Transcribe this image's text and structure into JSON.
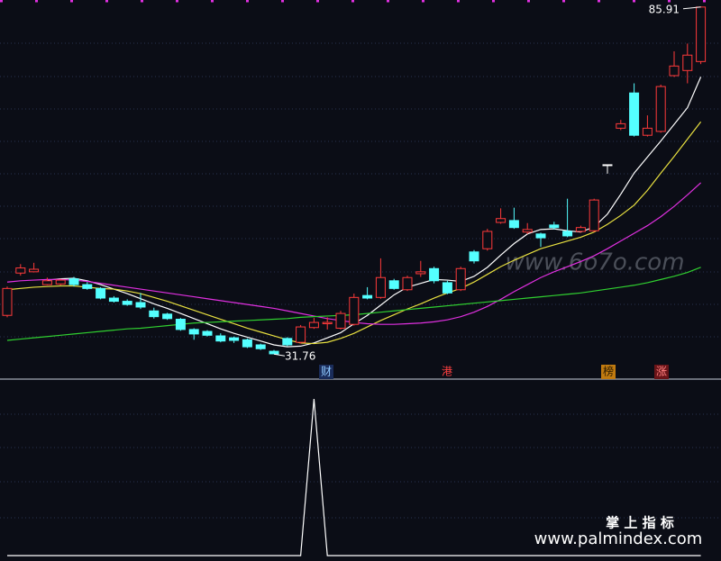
{
  "chart_data": [
    {
      "type": "candlestick",
      "ylim": [
        28,
        87
      ],
      "up_color": "#ff3a3a",
      "down_color": "#54ffff",
      "open": [
        37.8,
        44.4,
        44.6,
        42.6,
        42.7,
        43.5,
        42.6,
        42.0,
        40.5,
        40.0,
        39.8,
        38.5,
        38.0,
        37.2,
        35.6,
        35.3,
        34.6,
        34.3,
        34.0,
        33.2,
        32.2,
        34.2,
        33.6,
        35.9,
        36.5,
        35.8,
        36.4,
        40.9,
        40.6,
        43.2,
        41.8,
        44.3,
        45.1,
        42.9,
        41.8,
        47.7,
        48.2,
        52.3,
        52.6,
        50.8,
        50.5,
        51.9,
        50.9,
        50.9,
        51.0,
        61.3,
        67.0,
        72.5,
        65.9,
        66.5,
        75.2,
        76.0,
        77.4
      ],
      "close": [
        42.0,
        45.2,
        45.0,
        43.2,
        43.3,
        42.6,
        42.0,
        40.5,
        40.0,
        39.5,
        39.1,
        37.6,
        37.3,
        35.6,
        34.9,
        34.7,
        33.8,
        33.9,
        32.9,
        32.6,
        31.8,
        33.2,
        36.0,
        36.7,
        36.7,
        38.1,
        40.6,
        40.5,
        43.7,
        42.0,
        43.7,
        44.6,
        43.2,
        41.3,
        45.1,
        46.3,
        50.9,
        52.9,
        51.5,
        51.2,
        49.9,
        51.5,
        50.2,
        51.5,
        55.8,
        61.3,
        67.7,
        65.9,
        67.0,
        73.5,
        76.7,
        78.4,
        85.9
      ],
      "high": [
        42.3,
        45.8,
        46.0,
        43.7,
        43.5,
        43.8,
        43.0,
        42.2,
        40.8,
        40.3,
        41.3,
        39.0,
        38.2,
        37.4,
        35.8,
        35.5,
        35.0,
        34.5,
        34.2,
        33.4,
        32.4,
        34.4,
        36.3,
        37.4,
        37.5,
        38.5,
        41.2,
        42.2,
        46.7,
        43.5,
        44.0,
        46.3,
        45.4,
        43.2,
        45.4,
        48.0,
        51.3,
        54.5,
        54.6,
        52.2,
        50.7,
        52.4,
        56.0,
        51.8,
        56.0,
        61.3,
        68.3,
        74.0,
        69.0,
        73.8,
        79.0,
        80.2,
        85.91
      ],
      "low": [
        37.5,
        44.0,
        44.5,
        42.5,
        42.5,
        42.3,
        41.8,
        40.3,
        39.8,
        39.3,
        38.8,
        37.3,
        37.1,
        35.4,
        34.0,
        34.5,
        33.6,
        33.5,
        32.7,
        32.4,
        31.76,
        33.0,
        33.4,
        35.7,
        35.6,
        35.6,
        36.2,
        40.3,
        40.4,
        41.8,
        41.6,
        43.8,
        42.8,
        41.1,
        41.6,
        45.9,
        47.9,
        52.1,
        51.3,
        50.5,
        48.5,
        51.2,
        50.0,
        50.7,
        50.8,
        59.9,
        66.7,
        65.7,
        65.7,
        66.3,
        75.0,
        74.0,
        77.0
      ],
      "series": [
        {
          "color": "#ffffff",
          "values": [
            null,
            null,
            null,
            43.3,
            43.5,
            43.6,
            43.2,
            42.6,
            41.9,
            41.2,
            40.4,
            39.6,
            38.9,
            38.1,
            37.3,
            36.5,
            35.7,
            35.0,
            34.4,
            33.8,
            33.2,
            32.9,
            33.0,
            33.5,
            34.3,
            35.1,
            36.5,
            37.8,
            39.4,
            41.0,
            42.2,
            42.8,
            43.4,
            43.3,
            43.1,
            43.9,
            45.3,
            47.2,
            49.0,
            50.5,
            51.2,
            51.3,
            51.0,
            50.8,
            51.6,
            53.6,
            56.7,
            60.0,
            62.5,
            65.0,
            67.6,
            70.2,
            75.0
          ]
        },
        {
          "color": "#e8e040",
          "values": [
            41.8,
            42.0,
            42.2,
            42.3,
            42.4,
            42.4,
            42.2,
            42.0,
            41.9,
            41.6,
            41.2,
            40.6,
            40.0,
            39.3,
            38.6,
            37.9,
            37.2,
            36.5,
            35.8,
            35.2,
            34.6,
            34.0,
            33.5,
            33.4,
            33.6,
            34.2,
            35.0,
            36.0,
            37.0,
            37.9,
            38.8,
            39.6,
            40.5,
            41.3,
            42.0,
            43.0,
            44.2,
            45.4,
            46.4,
            47.3,
            48.2,
            48.8,
            49.4,
            50.0,
            50.8,
            52.0,
            53.4,
            55.0,
            57.3,
            60.0,
            62.6,
            65.3,
            68.0
          ]
        },
        {
          "color": "#e030e0",
          "values": [
            43.0,
            43.2,
            43.3,
            43.4,
            43.4,
            43.3,
            43.1,
            42.8,
            42.5,
            42.2,
            41.9,
            41.6,
            41.3,
            41.0,
            40.7,
            40.4,
            40.1,
            39.8,
            39.5,
            39.2,
            38.9,
            38.5,
            38.1,
            37.7,
            37.3,
            37.0,
            36.7,
            36.5,
            36.4,
            36.4,
            36.5,
            36.6,
            36.8,
            37.1,
            37.6,
            38.3,
            39.2,
            40.3,
            41.5,
            42.6,
            43.7,
            44.6,
            45.4,
            46.2,
            47.1,
            48.2,
            49.4,
            50.6,
            51.8,
            53.2,
            54.8,
            56.6,
            58.5
          ]
        },
        {
          "color": "#30d030",
          "values": [
            33.9,
            34.1,
            34.3,
            34.5,
            34.7,
            34.9,
            35.1,
            35.3,
            35.5,
            35.7,
            35.8,
            36.0,
            36.2,
            36.4,
            36.6,
            36.7,
            36.8,
            36.9,
            37.0,
            37.1,
            37.2,
            37.3,
            37.5,
            37.6,
            37.7,
            37.8,
            37.9,
            38.1,
            38.3,
            38.5,
            38.7,
            38.9,
            39.1,
            39.3,
            39.5,
            39.7,
            39.9,
            40.1,
            40.3,
            40.5,
            40.7,
            40.9,
            41.1,
            41.3,
            41.6,
            41.9,
            42.2,
            42.5,
            42.9,
            43.4,
            43.9,
            44.5,
            45.3
          ]
        }
      ],
      "extremes": [
        85.91,
        31.76
      ],
      "annotations": [
        "财",
        "港",
        "榜",
        "涨"
      ]
    },
    {
      "type": "line",
      "ylim": [
        0,
        1
      ],
      "color": "#ffffff",
      "values": [
        0,
        0,
        0,
        0,
        0,
        0,
        0,
        0,
        0,
        0,
        0,
        0,
        0,
        0,
        0,
        0,
        0,
        0,
        0,
        0,
        0,
        0,
        0,
        1,
        0,
        0,
        0,
        0,
        0,
        0,
        0,
        0,
        0,
        0,
        0,
        0,
        0,
        0,
        0,
        0,
        0,
        0,
        0,
        0,
        0,
        0,
        0,
        0,
        0,
        0,
        0,
        0,
        0
      ]
    }
  ],
  "watermark": "www.6o7o.com",
  "footer": {
    "title": "掌 上 指 标",
    "url": "www.palmindex.com"
  }
}
